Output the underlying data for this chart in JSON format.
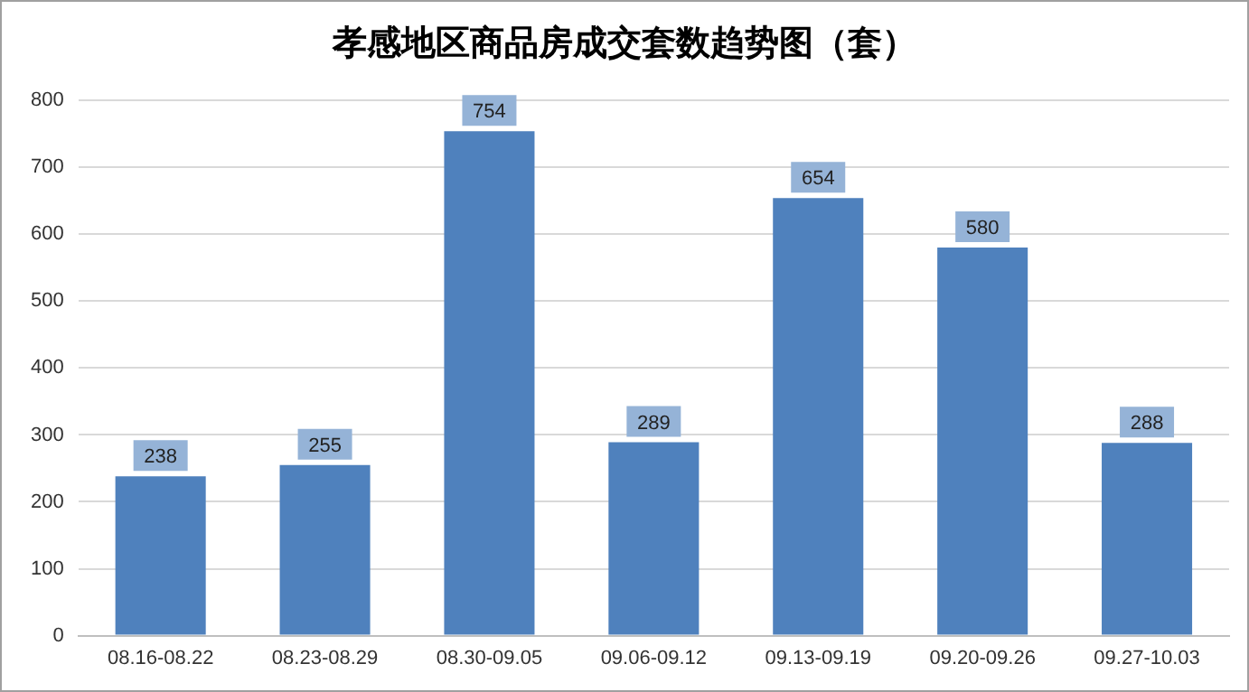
{
  "chart_data": {
    "type": "bar",
    "title": "孝感地区商品房成交套数趋势图（套）",
    "categories": [
      "08.16-08.22",
      "08.23-08.29",
      "08.30-09.05",
      "09.06-09.12",
      "09.13-09.19",
      "09.20-09.26",
      "09.27-10.03"
    ],
    "values": [
      238,
      255,
      754,
      289,
      654,
      580,
      288
    ],
    "color": "#4f81bd",
    "ylim": [
      0,
      800
    ],
    "yticks": [
      0,
      100,
      200,
      300,
      400,
      500,
      600,
      700,
      800
    ],
    "grid": "y",
    "data_labels": true
  }
}
